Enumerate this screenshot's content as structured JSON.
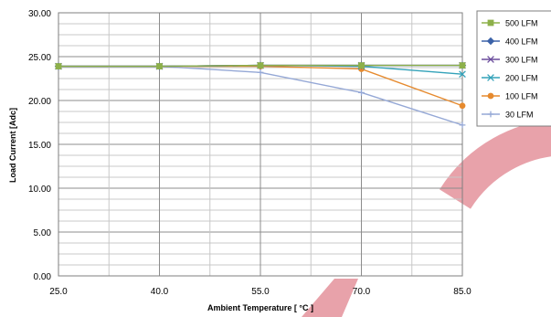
{
  "chart_data": {
    "type": "line",
    "title": "",
    "xlabel": "Ambient Temperature [ °C ]",
    "ylabel": "Load Current [Adc]",
    "x": [
      25,
      40,
      55,
      70,
      85
    ],
    "x_tick_labels": [
      "25.0",
      "40.0",
      "55.0",
      "70.0",
      "85.0"
    ],
    "xlim": [
      25,
      85
    ],
    "ylim": [
      0,
      30
    ],
    "y_ticks": [
      0,
      5,
      10,
      15,
      20,
      25,
      30
    ],
    "y_tick_labels": [
      "0.00",
      "5.00",
      "10.00",
      "15.00",
      "20.00",
      "25.00",
      "30.00"
    ],
    "grid": true,
    "legend_position": "top-right",
    "series": [
      {
        "name": "500 LFM",
        "values": [
          23.9,
          23.9,
          24.0,
          24.0,
          24.0
        ],
        "color": "#8db04a",
        "marker": "square"
      },
      {
        "name": "400 LFM",
        "values": [
          23.9,
          23.9,
          24.0,
          24.0,
          24.0
        ],
        "color": "#3b62a8",
        "marker": "diamond"
      },
      {
        "name": "300 LFM",
        "values": [
          23.9,
          23.9,
          24.0,
          24.0,
          24.0
        ],
        "color": "#6a4c9c",
        "marker": "x"
      },
      {
        "name": "200 LFM",
        "values": [
          23.9,
          23.9,
          24.0,
          23.9,
          23.0
        ],
        "color": "#33a2b9",
        "marker": "x"
      },
      {
        "name": "100 LFM",
        "values": [
          23.9,
          23.9,
          23.9,
          23.6,
          19.4
        ],
        "color": "#e68a2e",
        "marker": "circle"
      },
      {
        "name": "30 LFM",
        "values": [
          23.9,
          23.9,
          23.2,
          20.9,
          17.2
        ],
        "color": "#95a8d6",
        "marker": "plus"
      }
    ]
  },
  "watermark": {
    "color": "#e8a2aa"
  }
}
